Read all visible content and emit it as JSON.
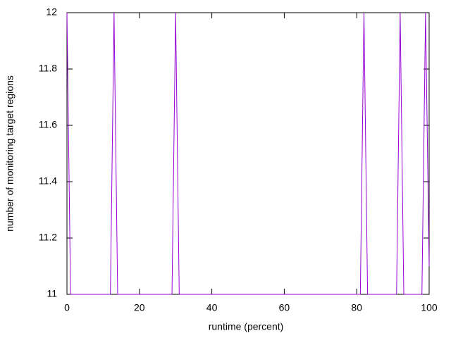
{
  "chart_data": {
    "type": "line",
    "xlabel": "runtime (percent)",
    "ylabel": "number of monitoring target regions",
    "color": "#9400d3",
    "x": [
      0,
      1,
      2,
      3,
      4,
      5,
      6,
      7,
      8,
      9,
      10,
      11,
      12,
      13,
      14,
      15,
      16,
      17,
      18,
      19,
      20,
      21,
      22,
      23,
      24,
      25,
      26,
      27,
      28,
      29,
      30,
      31,
      32,
      33,
      34,
      35,
      36,
      37,
      38,
      39,
      40,
      41,
      42,
      43,
      44,
      45,
      46,
      47,
      48,
      49,
      50,
      51,
      52,
      53,
      54,
      55,
      56,
      57,
      58,
      59,
      60,
      61,
      62,
      63,
      64,
      65,
      66,
      67,
      68,
      69,
      70,
      71,
      72,
      73,
      74,
      75,
      76,
      77,
      78,
      79,
      80,
      81,
      82,
      83,
      84,
      85,
      86,
      87,
      88,
      89,
      90,
      91,
      92,
      93,
      94,
      95,
      96,
      97,
      98,
      99,
      100
    ],
    "values": [
      12,
      11,
      11,
      11,
      11,
      11,
      11,
      11,
      11,
      11,
      11,
      11,
      11,
      12,
      11,
      11,
      11,
      11,
      11,
      11,
      11,
      11,
      11,
      11,
      11,
      11,
      11,
      11,
      11,
      11,
      12,
      11,
      11,
      11,
      11,
      11,
      11,
      11,
      11,
      11,
      11,
      11,
      11,
      11,
      11,
      11,
      11,
      11,
      11,
      11,
      11,
      11,
      11,
      11,
      11,
      11,
      11,
      11,
      11,
      11,
      11,
      11,
      11,
      11,
      11,
      11,
      11,
      11,
      11,
      11,
      11,
      11,
      11,
      11,
      11,
      11,
      11,
      11,
      11,
      11,
      11,
      11,
      12,
      11,
      11,
      11,
      11,
      11,
      11,
      11,
      11,
      11,
      12,
      11,
      11,
      11,
      11,
      11,
      11,
      12,
      11.1
    ],
    "xlim": [
      0,
      100
    ],
    "xticks": [
      0,
      20,
      40,
      60,
      80,
      100
    ],
    "ylim": [
      11,
      12
    ],
    "yticks": [
      11,
      11.2,
      11.4,
      11.6,
      11.8,
      12
    ]
  }
}
